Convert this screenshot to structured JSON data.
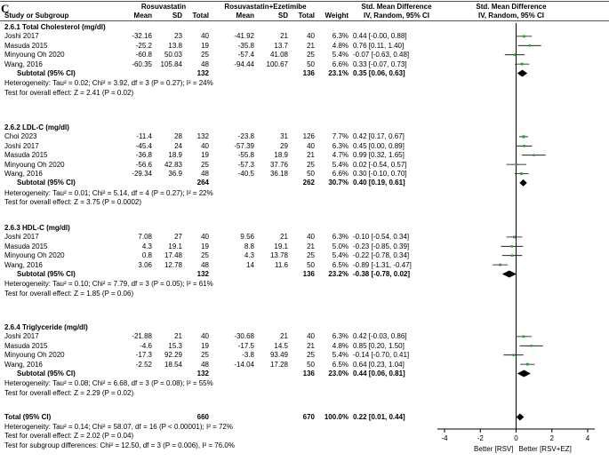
{
  "panel_label": "C",
  "header": {
    "group1": "Rosuvastatin",
    "group2": "Rosuvastatin+Ezetimibe",
    "smd_title": "Std. Mean Difference",
    "smd_sub": "IV, Random, 95% CI",
    "plot_title": "Std. Mean Difference",
    "plot_sub": "IV, Random, 95% CI",
    "study": "Study or Subgroup",
    "mean1": "Mean",
    "sd1": "SD",
    "total1": "Total",
    "mean2": "Mean",
    "sd2": "SD",
    "total2": "Total",
    "weight": "Weight"
  },
  "subgroups": [
    {
      "title": "2.6.1 Total Cholesterol (mg/dl)",
      "studies": [
        {
          "name": "Joshi 2017",
          "m1": "-32.16",
          "sd1": "23",
          "n1": "40",
          "m2": "-41.92",
          "sd2": "21",
          "n2": "40",
          "w": "6.3%",
          "ci": "0.44 [-0.00, 0.88]"
        },
        {
          "name": "Masuda 2015",
          "m1": "-25.2",
          "sd1": "13.8",
          "n1": "19",
          "m2": "-35.8",
          "sd2": "13.7",
          "n2": "21",
          "w": "4.8%",
          "ci": "0.76 [0.11, 1.40]"
        },
        {
          "name": "Minyoung Oh 2020",
          "m1": "-60.8",
          "sd1": "50.03",
          "n1": "25",
          "m2": "-57.4",
          "sd2": "41.08",
          "n2": "25",
          "w": "5.4%",
          "ci": "-0.07 [-0.63, 0.48]"
        },
        {
          "name": "Wang, 2016",
          "m1": "-60.35",
          "sd1": "105.84",
          "n1": "48",
          "m2": "-94.44",
          "sd2": "100.67",
          "n2": "50",
          "w": "6.6%",
          "ci": "0.33 [-0.07, 0.73]"
        }
      ],
      "subtotal": {
        "label": "Subtotal (95% CI)",
        "n1": "132",
        "n2": "136",
        "w": "23.1%",
        "ci": "0.35 [0.06, 0.63]"
      },
      "het": "Heterogeneity: Tau² = 0.02; Chi² = 3.92, df = 3 (P = 0.27); I² = 24%",
      "test": "Test for overall effect: Z = 2.41 (P = 0.02)"
    },
    {
      "title": "2.6.2 LDL-C (mg/dl)",
      "studies": [
        {
          "name": "Choi 2023",
          "m1": "-11.4",
          "sd1": "28",
          "n1": "132",
          "m2": "-23.8",
          "sd2": "31",
          "n2": "126",
          "w": "7.7%",
          "ci": "0.42 [0.17, 0.67]"
        },
        {
          "name": "Joshi 2017",
          "m1": "-45.4",
          "sd1": "24",
          "n1": "40",
          "m2": "-57.39",
          "sd2": "29",
          "n2": "40",
          "w": "6.3%",
          "ci": "0.45 [0.00, 0.89]"
        },
        {
          "name": "Masuda 2015",
          "m1": "-36.8",
          "sd1": "18.9",
          "n1": "19",
          "m2": "-55.8",
          "sd2": "18.9",
          "n2": "21",
          "w": "4.7%",
          "ci": "0.99 [0.32, 1.65]"
        },
        {
          "name": "Minyoung Oh 2020",
          "m1": "-56.6",
          "sd1": "42.83",
          "n1": "25",
          "m2": "-57.3",
          "sd2": "37.76",
          "n2": "25",
          "w": "5.4%",
          "ci": "0.02 [-0.54, 0.57]"
        },
        {
          "name": "Wang, 2016",
          "m1": "-29.34",
          "sd1": "36.9",
          "n1": "48",
          "m2": "-40.5",
          "sd2": "36.18",
          "n2": "50",
          "w": "6.6%",
          "ci": "0.30 [-0.10, 0.70]"
        }
      ],
      "subtotal": {
        "label": "Subtotal (95% CI)",
        "n1": "264",
        "n2": "262",
        "w": "30.7%",
        "ci": "0.40 [0.19, 0.61]"
      },
      "het": "Heterogeneity: Tau² = 0.01; Chi² = 5.14, df = 4 (P = 0.27); I² = 22%",
      "test": "Test for overall effect: Z = 3.75 (P = 0.0002)"
    },
    {
      "title": "2.6.3 HDL-C (mg/dl)",
      "studies": [
        {
          "name": "Joshi 2017",
          "m1": "7.08",
          "sd1": "27",
          "n1": "40",
          "m2": "9.56",
          "sd2": "21",
          "n2": "40",
          "w": "6.3%",
          "ci": "-0.10 [-0.54, 0.34]"
        },
        {
          "name": "Masuda 2015",
          "m1": "4.3",
          "sd1": "19.1",
          "n1": "19",
          "m2": "8.8",
          "sd2": "19.1",
          "n2": "21",
          "w": "5.0%",
          "ci": "-0.23 [-0.85, 0.39]"
        },
        {
          "name": "Minyoung Oh 2020",
          "m1": "0.8",
          "sd1": "17.48",
          "n1": "25",
          "m2": "4.3",
          "sd2": "13.78",
          "n2": "25",
          "w": "5.4%",
          "ci": "-0.22 [-0.78, 0.34]"
        },
        {
          "name": "Wang, 2016",
          "m1": "3.06",
          "sd1": "12.78",
          "n1": "48",
          "m2": "14",
          "sd2": "11.6",
          "n2": "50",
          "w": "6.5%",
          "ci": "-0.89 [-1.31, -0.47]"
        }
      ],
      "subtotal": {
        "label": "Subtotal (95% CI)",
        "n1": "132",
        "n2": "136",
        "w": "23.2%",
        "ci": "-0.38 [-0.78, 0.02]"
      },
      "het": "Heterogeneity: Tau² = 0.10; Chi² = 7.79, df = 3 (P = 0.05); I² = 61%",
      "test": "Test for overall effect: Z = 1.85 (P = 0.06)"
    },
    {
      "title": "2.6.4 Triglyceride (mg/dl)",
      "studies": [
        {
          "name": "Joshi 2017",
          "m1": "-21.88",
          "sd1": "21",
          "n1": "40",
          "m2": "-30.68",
          "sd2": "21",
          "n2": "40",
          "w": "6.3%",
          "ci": "0.42 [-0.03, 0.86]"
        },
        {
          "name": "Masuda 2015",
          "m1": "-4.6",
          "sd1": "15.3",
          "n1": "19",
          "m2": "-17.5",
          "sd2": "14.5",
          "n2": "21",
          "w": "4.8%",
          "ci": "0.85 [0.20, 1.50]"
        },
        {
          "name": "Minyoung Oh 2020",
          "m1": "-17.3",
          "sd1": "92.29",
          "n1": "25",
          "m2": "-3.8",
          "sd2": "93.49",
          "n2": "25",
          "w": "5.4%",
          "ci": "-0.14 [-0.70, 0.41]"
        },
        {
          "name": "Wang, 2016",
          "m1": "-2.52",
          "sd1": "18.54",
          "n1": "48",
          "m2": "-14.04",
          "sd2": "17.28",
          "n2": "50",
          "w": "6.5%",
          "ci": "0.64 [0.23, 1.04]"
        }
      ],
      "subtotal": {
        "label": "Subtotal (95% CI)",
        "n1": "132",
        "n2": "136",
        "w": "23.0%",
        "ci": "0.44 [0.06, 0.81]"
      },
      "het": "Heterogeneity: Tau² = 0.08; Chi² = 6.68, df = 3 (P = 0.08); I² = 55%",
      "test": "Test for overall effect: Z = 2.29 (P = 0.02)"
    }
  ],
  "total": {
    "label": "Total (95% CI)",
    "n1": "660",
    "n2": "670",
    "w": "100.0%",
    "ci": "0.22 [0.01, 0.44]"
  },
  "footer": {
    "het": "Heterogeneity: Tau² = 0.14; Chi² = 58.07, df = 16 (P < 0.00001); I² = 72%",
    "test": "Test for overall effect: Z = 2.02 (P = 0.04)",
    "subgroup": "Test for subgroup differences: Chi² = 12.50, df = 3 (P = 0.006), I² = 76.0%"
  },
  "chart_data": {
    "type": "forest",
    "title": "Std. Mean Difference",
    "subtitle": "IV, Random, 95% CI",
    "xlim": [
      -4,
      4
    ],
    "xticks": [
      "-4",
      "-2",
      "0",
      "2",
      "4"
    ],
    "xlabel_left": "Better [RSV]",
    "xlabel_right": "Better [RSV+EZ]",
    "colors": {
      "box": "#2ca02c",
      "diamond": "#000000",
      "line": "#000000"
    },
    "rows": [
      {
        "kind": "study",
        "est": 0.44,
        "lo": -0.0,
        "hi": 0.88,
        "weight": 6.3
      },
      {
        "kind": "study",
        "est": 0.76,
        "lo": 0.11,
        "hi": 1.4,
        "weight": 4.8
      },
      {
        "kind": "study",
        "est": -0.07,
        "lo": -0.63,
        "hi": 0.48,
        "weight": 5.4
      },
      {
        "kind": "study",
        "est": 0.33,
        "lo": -0.07,
        "hi": 0.73,
        "weight": 6.6
      },
      {
        "kind": "diamond",
        "est": 0.35,
        "lo": 0.06,
        "hi": 0.63
      },
      {
        "kind": "study",
        "est": 0.42,
        "lo": 0.17,
        "hi": 0.67,
        "weight": 7.7
      },
      {
        "kind": "study",
        "est": 0.45,
        "lo": 0.0,
        "hi": 0.89,
        "weight": 6.3
      },
      {
        "kind": "study",
        "est": 0.99,
        "lo": 0.32,
        "hi": 1.65,
        "weight": 4.7
      },
      {
        "kind": "study",
        "est": 0.02,
        "lo": -0.54,
        "hi": 0.57,
        "weight": 5.4
      },
      {
        "kind": "study",
        "est": 0.3,
        "lo": -0.1,
        "hi": 0.7,
        "weight": 6.6
      },
      {
        "kind": "diamond",
        "est": 0.4,
        "lo": 0.19,
        "hi": 0.61
      },
      {
        "kind": "study",
        "est": -0.1,
        "lo": -0.54,
        "hi": 0.34,
        "weight": 6.3
      },
      {
        "kind": "study",
        "est": -0.23,
        "lo": -0.85,
        "hi": 0.39,
        "weight": 5.0
      },
      {
        "kind": "study",
        "est": -0.22,
        "lo": -0.78,
        "hi": 0.34,
        "weight": 5.4
      },
      {
        "kind": "study",
        "est": -0.89,
        "lo": -1.31,
        "hi": -0.47,
        "weight": 6.5
      },
      {
        "kind": "diamond",
        "est": -0.38,
        "lo": -0.78,
        "hi": 0.02
      },
      {
        "kind": "study",
        "est": 0.42,
        "lo": -0.03,
        "hi": 0.86,
        "weight": 6.3
      },
      {
        "kind": "study",
        "est": 0.85,
        "lo": 0.2,
        "hi": 1.5,
        "weight": 4.8
      },
      {
        "kind": "study",
        "est": -0.14,
        "lo": -0.7,
        "hi": 0.41,
        "weight": 5.4
      },
      {
        "kind": "study",
        "est": 0.64,
        "lo": 0.23,
        "hi": 1.04,
        "weight": 6.5
      },
      {
        "kind": "diamond",
        "est": 0.44,
        "lo": 0.06,
        "hi": 0.81
      },
      {
        "kind": "diamond",
        "est": 0.22,
        "lo": 0.01,
        "hi": 0.44
      }
    ]
  }
}
